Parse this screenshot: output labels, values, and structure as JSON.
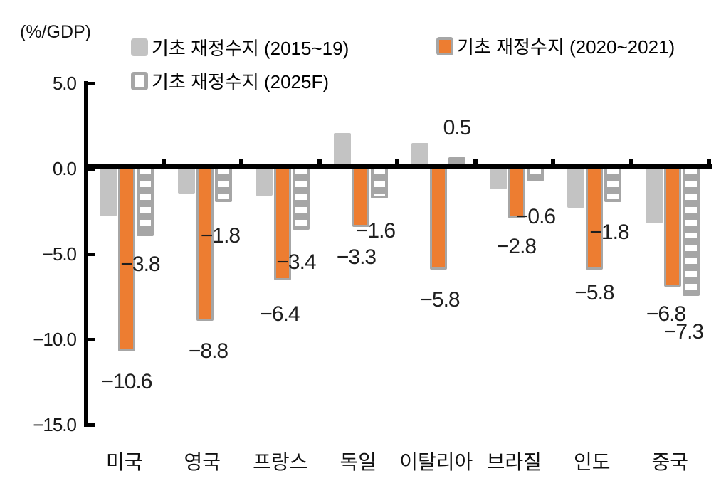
{
  "unit_label": "(%/GDP)",
  "legend": {
    "items": [
      {
        "label": "기초 재정수지 (2015~19)",
        "swatch": "solid-gray"
      },
      {
        "label": "기초 재정수지 (2020~2021)",
        "swatch": "orange-with-gray-outline"
      },
      {
        "label": "기초 재정수지 (2025F)",
        "swatch": "white-hatched-with-gray-outline"
      }
    ]
  },
  "colors": {
    "series_gray": "#c3c3c3",
    "series_orange": "#ed7d31",
    "outline_gray": "#a6a6a6",
    "axis": "#000000",
    "value_label_text": "#1f1f1f",
    "tick_label_text": "#191919"
  },
  "chart_data": {
    "type": "bar",
    "title": "",
    "unit": "%/GDP",
    "categories": [
      "미국",
      "영국",
      "프랑스",
      "독일",
      "이탈리아",
      "브라질",
      "인도",
      "중국"
    ],
    "series": [
      {
        "name": "기초 재정수지 (2015~19)",
        "style": "solid-gray",
        "values": [
          -2.8,
          -1.5,
          -1.6,
          2.1,
          1.5,
          -1.2,
          -2.3,
          -3.2
        ],
        "labels": null
      },
      {
        "name": "기초 재정수지 (2020~2021)",
        "style": "solid-orange-gray-outline",
        "values": [
          -10.6,
          -8.8,
          -6.4,
          -3.3,
          -5.8,
          -2.8,
          -5.8,
          -6.8
        ],
        "labels": [
          "−10.6",
          "−8.8",
          "−6.4",
          "−3.3",
          "−5.8",
          "−2.8",
          "−5.8",
          "−6.8"
        ]
      },
      {
        "name": "기초 재정수지 (2025F)",
        "style": "white-hatched-gray-outline",
        "values": [
          -3.8,
          -1.8,
          -3.4,
          -1.6,
          0.5,
          -0.6,
          -1.8,
          -7.3
        ],
        "labels": [
          "−3.8",
          "−1.8",
          "−3.4",
          "−1.6",
          "0.5",
          "−0.6",
          "−1.8",
          "−7.3"
        ]
      }
    ],
    "y_axis": {
      "unit_label": "(%/GDP)",
      "min": -15,
      "max": 5,
      "step": 5,
      "tick_values": [
        5,
        0,
        -5,
        -10,
        -15
      ],
      "tick_labels": [
        "5.0",
        "0.0",
        "−5.0",
        "−10.0",
        "−15.0"
      ]
    },
    "grid": false,
    "legend_position": "top"
  }
}
